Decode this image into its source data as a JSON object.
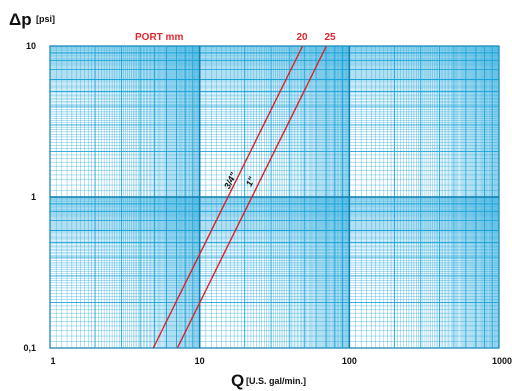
{
  "chart_data": {
    "type": "line",
    "x_scale": "log",
    "y_scale": "log",
    "xlim": [
      1,
      1000
    ],
    "ylim": [
      0.1,
      10
    ],
    "grid": true,
    "x_ticks": [
      "1",
      "10",
      "100",
      "1000"
    ],
    "y_ticks": [
      "0,1",
      "1",
      "10"
    ],
    "y_label_main": "Δp",
    "y_label_unit": "[psi]",
    "x_label_main": "Q",
    "x_label_unit": "[U.S. gal/min.]",
    "port_label": "PORT mm",
    "series": [
      {
        "name": "3/4\"",
        "port": "20",
        "x": [
          4.9,
          48.7
        ],
        "y": [
          0.1,
          10
        ]
      },
      {
        "name": "1\"",
        "port": "25",
        "x": [
          7.1,
          70.3
        ],
        "y": [
          0.1,
          10
        ]
      }
    ]
  },
  "colors": {
    "grid": "#1aa3d9",
    "grid_dark": "#0d7fb0",
    "curve": "#d9232c",
    "port_text": "#e0262f",
    "text": "#111111"
  }
}
